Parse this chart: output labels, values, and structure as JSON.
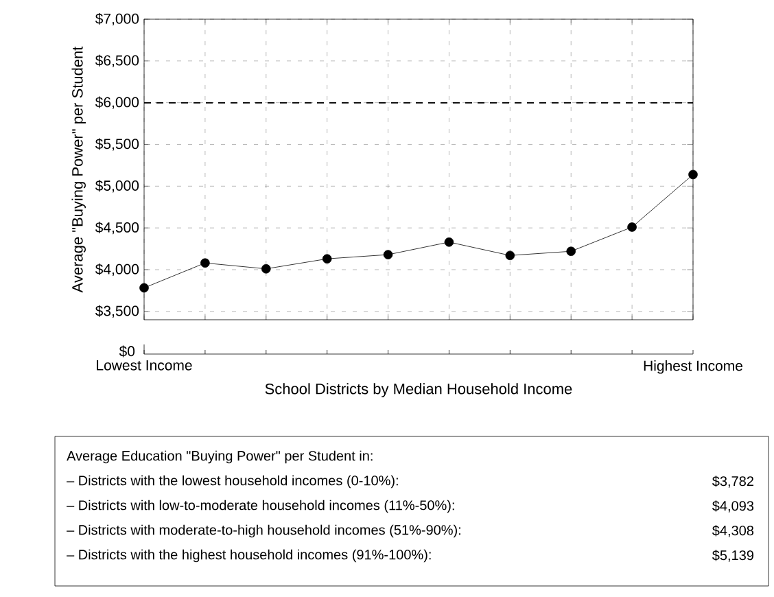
{
  "chart_data": [
    {
      "type": "line",
      "ylabel": "Average \"Buying Power\" per Student",
      "categories": [
        "Lowest Income",
        null,
        null,
        null,
        null,
        null,
        null,
        null,
        null,
        "Highest Income"
      ],
      "series": [
        {
          "color": "#000000",
          "values": [
            3782,
            4080,
            4010,
            4130,
            4180,
            4330,
            4170,
            4220,
            4510,
            5139
          ]
        }
      ],
      "ylim": [
        3400,
        7000
      ],
      "yticks": [
        {
          "value": 3500,
          "label": "$3,500"
        },
        {
          "value": 4000,
          "label": "$4,000"
        },
        {
          "value": 4500,
          "label": "$4,500"
        },
        {
          "value": 5000,
          "label": "$5,000"
        },
        {
          "value": 5500,
          "label": "$5,500"
        },
        {
          "value": 6000,
          "label": "$6,000"
        },
        {
          "value": 6500,
          "label": "$6,500"
        },
        {
          "value": 7000,
          "label": "$7,000"
        }
      ],
      "ref_lines": [
        {
          "axis": "y",
          "value": 6000,
          "line_style": "dashed",
          "color": "#000000"
        }
      ],
      "grid": true,
      "marker": "circle",
      "line_style": "solid",
      "xlabel": "School Districts by Median Household Income"
    },
    {
      "type": "other",
      "annotations": [
        "$0",
        "Average Education \"Buying Power\" per Student in:",
        "– Districts with the lowest household incomes (0-10%):",
        "$3,782",
        "– Districts with low-to-moderate household incomes (11%-50%):",
        "$4,093",
        "– Districts with moderate-to-high household incomes (51%-90%):",
        "$4,308",
        "– Districts with the highest household incomes (91%-100%):",
        "$5,139"
      ]
    }
  ]
}
